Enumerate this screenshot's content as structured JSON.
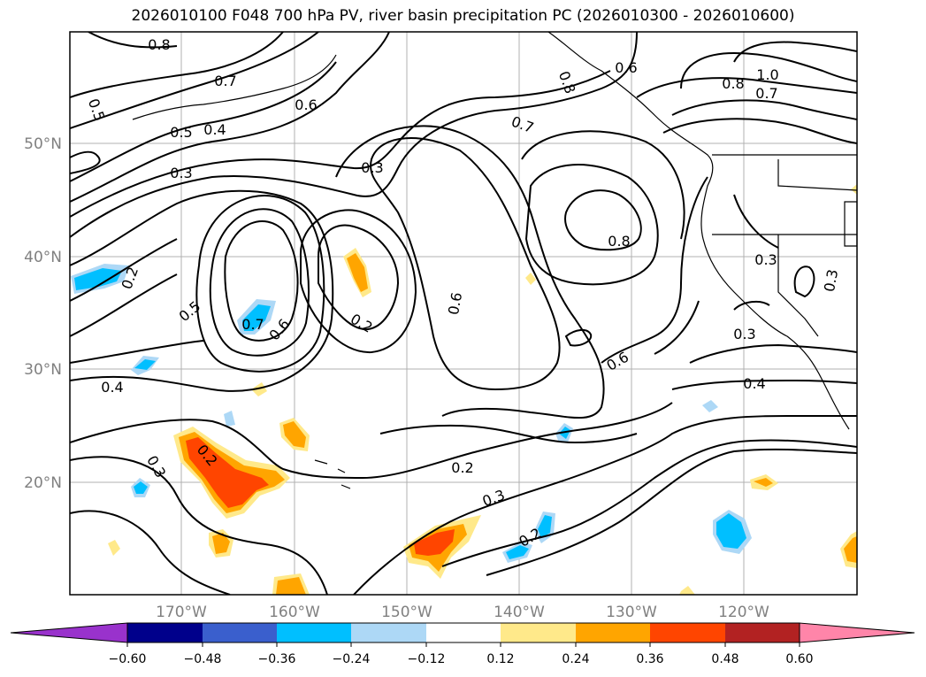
{
  "title": "2026010100 F048 700 hPa PV, river basin precipitation PC (2026010300 - 2026010600)",
  "lat_labels": [
    "50°N",
    "40°N",
    "30°N",
    "20°N"
  ],
  "lon_labels": [
    "170°W",
    "160°W",
    "150°W",
    "140°W",
    "130°W",
    "120°W"
  ],
  "contour_labels": [
    "0.8",
    "0.7",
    "0.5",
    "0.6",
    "0.5",
    "0.4",
    "0.3",
    "0.3",
    "0.7",
    "0.8",
    "0.6",
    "1.0",
    "0.8",
    "0.7",
    "0.8",
    "0.2",
    "0.5",
    "0.7",
    "0.6",
    "0.2",
    "0.6",
    "0.3",
    "0.6",
    "0.3",
    "0.4",
    "0.4",
    "0.3",
    "0.2",
    "0.2",
    "0.3",
    "0.2",
    "0.3"
  ],
  "colorbar": {
    "colors": [
      "#9932cc",
      "#00008b",
      "#3a5fcd",
      "#00bfff",
      "#add8f6",
      "#ffffff",
      "#ffe98a",
      "#ffa500",
      "#ff4500",
      "#b22222",
      "#ff85a9",
      "#ff85a9"
    ],
    "ticks": [
      "−0.60",
      "−0.48",
      "−0.36",
      "−0.24",
      "−0.12",
      "0.12",
      "0.24",
      "0.36",
      "0.48",
      "0.60"
    ]
  }
}
